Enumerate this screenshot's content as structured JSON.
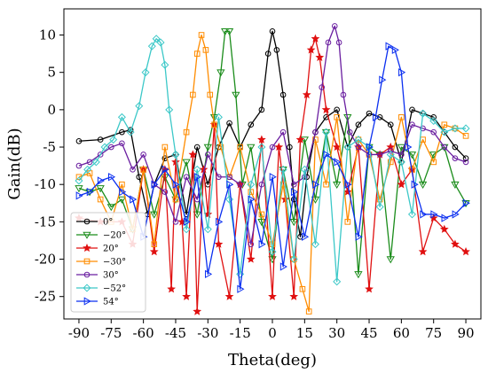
{
  "chart_data": {
    "type": "line",
    "title": "",
    "xlabel": "Theta(deg)",
    "ylabel": "Gain(dB)",
    "xlim": [
      -97,
      97
    ],
    "ylim": [
      -28,
      13.5
    ],
    "xticks": [
      -90,
      -75,
      -60,
      -45,
      -30,
      -15,
      0,
      15,
      30,
      45,
      60,
      75,
      90
    ],
    "xtick_labels": [
      "-90",
      "-75",
      "-60",
      "-45",
      "-30",
      "-15",
      "0",
      "15",
      "30",
      "45",
      "60",
      "75",
      "90"
    ],
    "yticks": [
      10,
      5,
      0,
      -5,
      -10,
      -15,
      -20,
      -25
    ],
    "ytick_labels": [
      "10",
      "5",
      "0",
      "-5",
      "-10",
      "-15",
      "-20",
      "-25"
    ],
    "grid": false,
    "legend_position": "bottom-left",
    "series": [
      {
        "name": "0°",
        "color": "#000000",
        "marker": "circle",
        "x": [
          -90,
          -80,
          -70,
          -66,
          -62,
          -58,
          -55,
          -50,
          -45,
          -40,
          -35,
          -30,
          -25,
          -20,
          -15,
          -10,
          -5,
          -2,
          0,
          2,
          5,
          8,
          10,
          13,
          16,
          20,
          25,
          30,
          35,
          40,
          45,
          50,
          55,
          60,
          65,
          70,
          75,
          80,
          85,
          90
        ],
        "y": [
          -4.2,
          -4,
          -3,
          -2.7,
          -9,
          -14,
          -10,
          -6.5,
          -6,
          -14,
          -5,
          -10,
          -5,
          -1.8,
          -5,
          -2,
          0,
          7.5,
          10.5,
          8,
          2,
          -5,
          -12,
          -17,
          -9,
          -3,
          -1,
          0,
          -5,
          -2,
          -0.5,
          -1,
          -2,
          -7,
          0,
          -0.5,
          -1,
          -3,
          -5,
          -6.5
        ]
      },
      {
        "name": "−20°",
        "color": "#1a8c1a",
        "marker": "triangle-down",
        "x": [
          -90,
          -85,
          -80,
          -75,
          -70,
          -65,
          -60,
          -55,
          -50,
          -45,
          -40,
          -35,
          -30,
          -27,
          -24,
          -22,
          -20,
          -17,
          -14,
          -10,
          -5,
          0,
          5,
          10,
          15,
          20,
          25,
          30,
          35,
          40,
          45,
          50,
          55,
          60,
          65,
          70,
          75,
          80,
          85,
          90
        ],
        "y": [
          -10.5,
          -11,
          -10.5,
          -13,
          -12,
          -16,
          -8,
          -14,
          -9,
          -12,
          -7,
          -14,
          -5,
          -1,
          5,
          10.5,
          10.5,
          2,
          -10,
          -5,
          -15,
          -20,
          -8,
          -15,
          -4,
          -12,
          -3,
          -10,
          -1,
          -22,
          -5,
          -6,
          -20,
          -5,
          -6,
          -10,
          -6,
          -5,
          -10,
          -12.5
        ]
      },
      {
        "name": "20°",
        "color": "#e01010",
        "marker": "star",
        "x": [
          -90,
          -80,
          -70,
          -65,
          -60,
          -55,
          -50,
          -47,
          -45,
          -42,
          -40,
          -37,
          -35,
          -32,
          -30,
          -27,
          -25,
          -20,
          -15,
          -10,
          -5,
          0,
          3,
          6,
          10,
          13,
          16,
          18,
          20,
          22,
          25,
          30,
          35,
          40,
          45,
          50,
          55,
          60,
          65,
          70,
          75,
          80,
          85,
          90
        ],
        "y": [
          -14.5,
          -15,
          -15,
          -18,
          -8,
          -19,
          -8,
          -24,
          -7,
          -15,
          -25,
          -6,
          -27,
          -8,
          -14,
          -2,
          -18,
          -25,
          -10,
          -20,
          -4,
          -25,
          -5,
          -12,
          -25,
          -4,
          2,
          8,
          9.5,
          7,
          0,
          -5,
          -11,
          -5,
          -24,
          -6,
          -5,
          -10,
          -8,
          -19,
          -14.5,
          -16,
          -18,
          -19
        ]
      },
      {
        "name": "−30°",
        "color": "#ff8c00",
        "marker": "square",
        "x": [
          -90,
          -85,
          -80,
          -75,
          -70,
          -65,
          -60,
          -55,
          -50,
          -45,
          -40,
          -37,
          -35,
          -33,
          -31,
          -29,
          -27,
          -24,
          -20,
          -15,
          -10,
          -5,
          0,
          5,
          10,
          14,
          17,
          20,
          25,
          30,
          35,
          40,
          45,
          50,
          55,
          60,
          65,
          70,
          75,
          80,
          85,
          90
        ],
        "y": [
          -9,
          -8.5,
          -12,
          -15,
          -10,
          -16,
          -8,
          -18,
          -5,
          -12,
          -3,
          2,
          7.5,
          10,
          8,
          2,
          -2,
          -5,
          -9,
          -5,
          -11,
          -14,
          -18,
          -10,
          -20,
          -24,
          -27,
          -4,
          -10,
          -1,
          -15,
          -4,
          -6,
          -12,
          -7,
          -1,
          -8,
          -4,
          -7,
          -2,
          -2.5,
          -3.5
        ]
      },
      {
        "name": "30°",
        "color": "#6a1ea0",
        "marker": "circle",
        "x": [
          -90,
          -85,
          -80,
          -75,
          -70,
          -65,
          -60,
          -55,
          -50,
          -45,
          -40,
          -35,
          -30,
          -25,
          -20,
          -15,
          -10,
          -5,
          0,
          5,
          10,
          15,
          20,
          23,
          26,
          29,
          31,
          33,
          36,
          40,
          45,
          50,
          55,
          60,
          65,
          70,
          75,
          80,
          85,
          90
        ],
        "y": [
          -7.5,
          -7,
          -6,
          -5,
          -4.5,
          -8,
          -6,
          -10,
          -11,
          -15,
          -9,
          -12,
          -6,
          -9,
          -9,
          -10,
          -18,
          -10,
          -5,
          -3,
          -10,
          -9,
          -3,
          3,
          9,
          11.2,
          9,
          2,
          -3,
          -5,
          -6,
          -6,
          -5.5,
          -6,
          -2,
          -2.5,
          -3,
          -5,
          -6.5,
          -7
        ]
      },
      {
        "name": "−52°",
        "color": "#3cc8c8",
        "marker": "diamond",
        "x": [
          -90,
          -86,
          -82,
          -78,
          -74,
          -70,
          -66,
          -62,
          -59,
          -56,
          -54,
          -52,
          -50,
          -48,
          -45,
          -40,
          -35,
          -30,
          -25,
          -20,
          -15,
          -10,
          -5,
          0,
          5,
          10,
          15,
          20,
          25,
          30,
          35,
          40,
          45,
          50,
          55,
          60,
          65,
          70,
          75,
          80,
          85,
          90
        ],
        "y": [
          -9.5,
          -8,
          -7,
          -5,
          -4,
          -1,
          -3,
          0.5,
          5,
          8.5,
          9.5,
          9,
          6,
          0,
          -6,
          -16,
          -8,
          -16,
          -1,
          -12,
          -22,
          -10,
          -5,
          -19,
          -8,
          -20,
          -8,
          -18,
          -3,
          -23,
          -5,
          -4,
          -5,
          -13,
          -6,
          -7,
          -14,
          -0.5,
          -1.5,
          -3,
          -2.5,
          -2.5
        ]
      },
      {
        "name": "54°",
        "color": "#0b2ff0",
        "marker": "triangle-right",
        "x": [
          -90,
          -85,
          -80,
          -75,
          -70,
          -65,
          -60,
          -55,
          -50,
          -45,
          -40,
          -35,
          -30,
          -25,
          -20,
          -15,
          -10,
          -5,
          0,
          5,
          10,
          15,
          20,
          25,
          30,
          35,
          40,
          45,
          48,
          51,
          54,
          57,
          60,
          63,
          66,
          70,
          75,
          80,
          85,
          90
        ],
        "y": [
          -11.5,
          -11,
          -9.5,
          -9,
          -11,
          -12,
          -17,
          -10,
          -8,
          -10,
          -15,
          -9,
          -22,
          -15,
          -10,
          -24,
          -12,
          -18,
          -9,
          -21,
          -11,
          -17,
          -10,
          -6,
          -7,
          -10,
          -17,
          -5,
          -1,
          4,
          8.5,
          8,
          5,
          -5,
          -10,
          -14,
          -14,
          -14.5,
          -14,
          -12.5
        ]
      }
    ]
  }
}
